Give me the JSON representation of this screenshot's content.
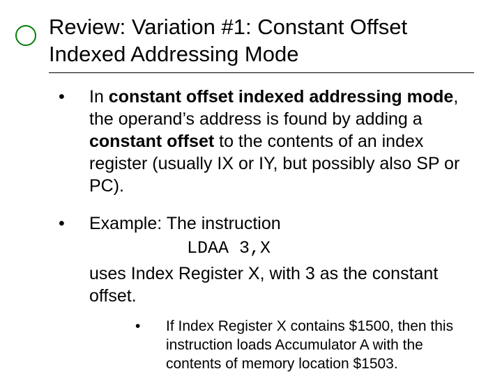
{
  "title": "Review: Variation #1: Constant Offset Indexed Addressing Mode",
  "decoration": {
    "circle_border_color": "#077d07"
  },
  "bullets": [
    {
      "runs": [
        {
          "t": "In ",
          "b": false
        },
        {
          "t": "constant offset indexed addressing mode",
          "b": true
        },
        {
          "t": ", the operand’s address is found by adding a ",
          "b": false
        },
        {
          "t": "constant offset",
          "b": true
        },
        {
          "t": " to the contents of an index register (usually IX or IY, but possibly also SP or PC).",
          "b": false
        }
      ]
    },
    {
      "runs": [
        {
          "t": "Example: The instruction",
          "b": false
        }
      ],
      "code": "LDAA 3,X",
      "after_runs": [
        {
          "t": "uses Index Register X, with 3 as the constant offset.",
          "b": false
        }
      ],
      "sub": [
        {
          "runs": [
            {
              "t": "If Index Register X contains $1500, then this instruction loads Accumulator A with the contents of memory location $1503.",
              "b": false
            }
          ]
        }
      ]
    }
  ],
  "styles": {
    "title_fontsize": 31,
    "body_fontsize": 25,
    "sub_fontsize": 21,
    "code_font": "Courier New",
    "text_color": "#000000",
    "background_color": "#ffffff",
    "underline_color": "#000000"
  }
}
